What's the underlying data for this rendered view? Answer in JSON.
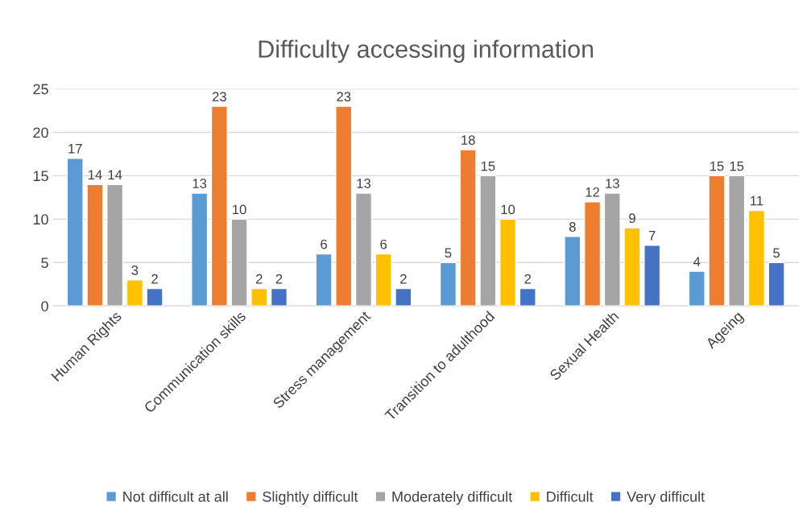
{
  "chart_data": {
    "type": "bar",
    "title": "Difficulty accessing information",
    "categories": [
      "Human Rights",
      "Communication skills",
      "Stress management",
      "Transition to adulthood",
      "Sexual Health",
      "Ageing"
    ],
    "series": [
      {
        "name": "Not difficult at all",
        "color": "#5b9bd5",
        "values": [
          17,
          13,
          6,
          5,
          8,
          4
        ]
      },
      {
        "name": "Slightly difficult",
        "color": "#ed7d31",
        "values": [
          14,
          23,
          23,
          18,
          12,
          15
        ]
      },
      {
        "name": "Moderately difficult",
        "color": "#a5a5a5",
        "values": [
          14,
          10,
          13,
          15,
          13,
          15
        ]
      },
      {
        "name": "Difficult",
        "color": "#ffc000",
        "values": [
          3,
          2,
          6,
          10,
          9,
          11
        ]
      },
      {
        "name": "Very difficult",
        "color": "#4472c4",
        "values": [
          2,
          2,
          2,
          2,
          7,
          5
        ]
      }
    ],
    "ylim": [
      0,
      25
    ],
    "yticks": [
      0,
      5,
      10,
      15,
      20,
      25
    ],
    "grid": "y",
    "legend": "bottom",
    "data_labels": true
  }
}
